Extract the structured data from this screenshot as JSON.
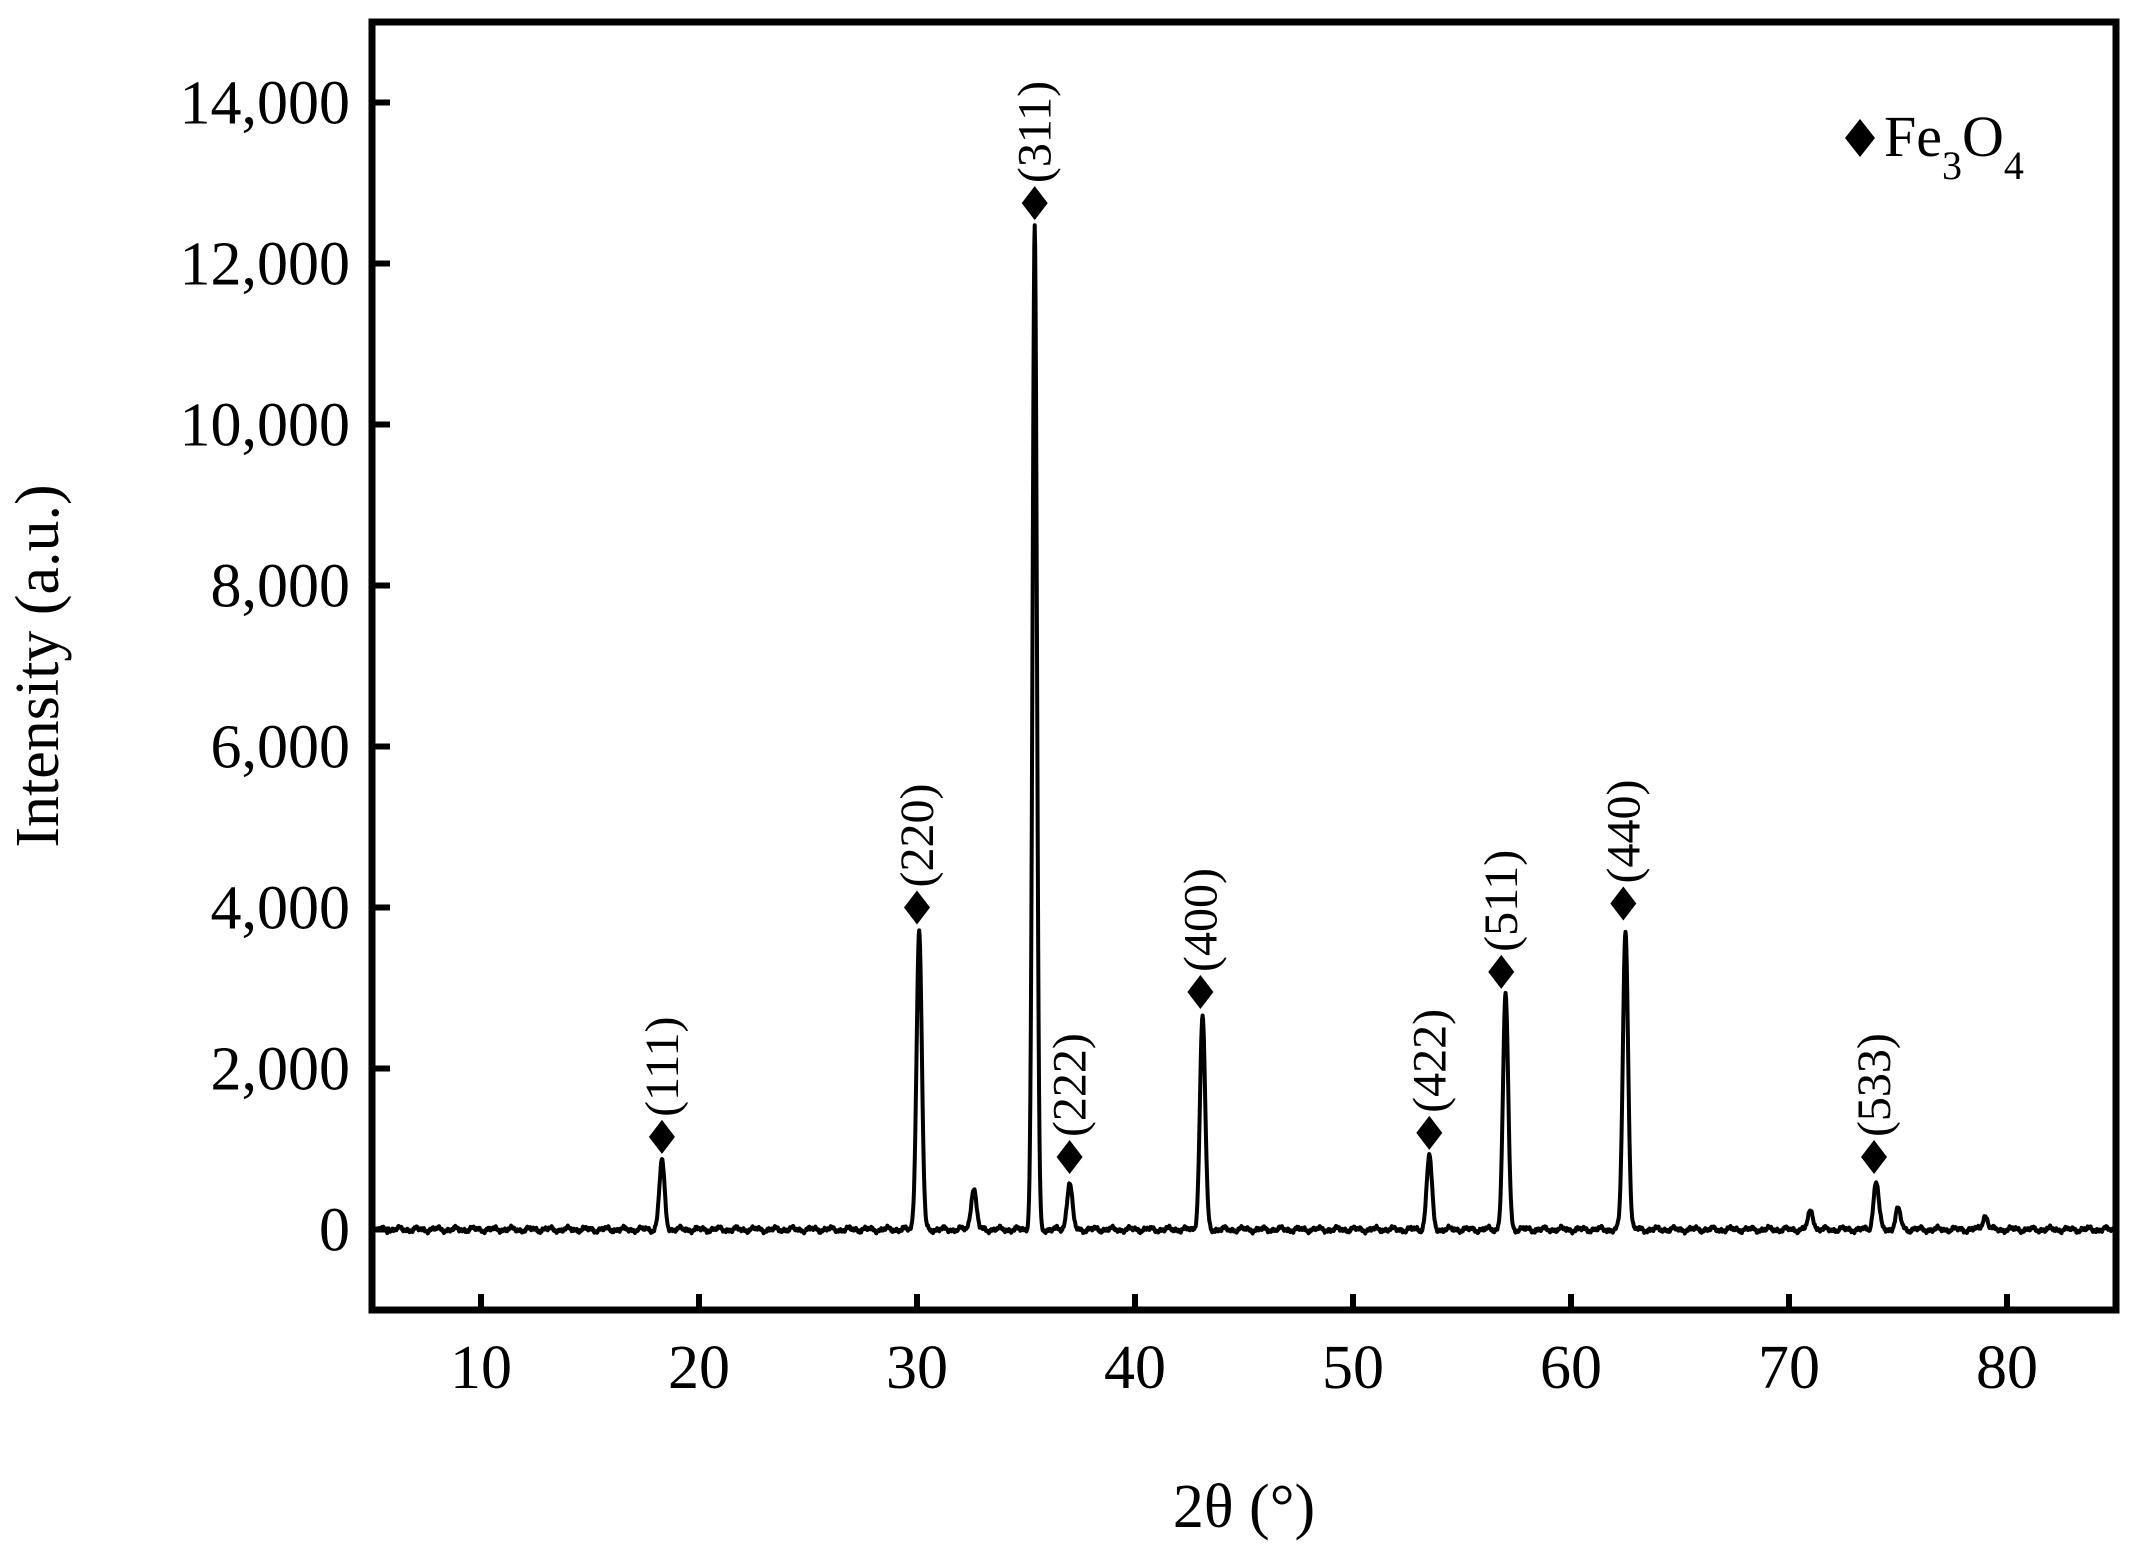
{
  "chart_data": {
    "type": "line",
    "title": "",
    "xlabel": "2θ (°)",
    "ylabel": "Intensity (a.u.)",
    "xlim": [
      5,
      85
    ],
    "ylim": [
      -1000,
      15000
    ],
    "x_ticks": [
      10,
      20,
      30,
      40,
      50,
      60,
      70,
      80
    ],
    "y_ticks": [
      0,
      2000,
      4000,
      6000,
      8000,
      10000,
      12000,
      14000
    ],
    "x_tick_labels": [
      "10",
      "20",
      "30",
      "40",
      "50",
      "60",
      "70",
      "80"
    ],
    "y_tick_labels": [
      "0",
      "2,000",
      "4,000",
      "6,000",
      "8,000",
      "10,000",
      "12,000",
      "14,000"
    ],
    "grid": false,
    "legend": {
      "placement": "top-right",
      "marker": "diamond",
      "label": {
        "base": "Fe",
        "sub1": "3",
        "mid": "O",
        "sub2": "4"
      }
    },
    "baseline": 0,
    "peaks": [
      {
        "x": 18.3,
        "y": 850,
        "hkl": "(111)",
        "marked": true
      },
      {
        "x": 30.1,
        "y": 3700,
        "hkl": "(220)",
        "marked": true
      },
      {
        "x": 32.6,
        "y": 520,
        "hkl": "",
        "marked": false
      },
      {
        "x": 35.4,
        "y": 12450,
        "hkl": "(311)",
        "marked": true
      },
      {
        "x": 37.0,
        "y": 580,
        "hkl": "(222)",
        "marked": true
      },
      {
        "x": 43.1,
        "y": 2650,
        "hkl": "(400)",
        "marked": true
      },
      {
        "x": 53.5,
        "y": 920,
        "hkl": "(422)",
        "marked": true
      },
      {
        "x": 57.0,
        "y": 2900,
        "hkl": "(511)",
        "marked": true
      },
      {
        "x": 62.5,
        "y": 3700,
        "hkl": "(440)",
        "marked": true
      },
      {
        "x": 71.0,
        "y": 230,
        "hkl": "",
        "marked": false
      },
      {
        "x": 74.0,
        "y": 600,
        "hkl": "(533)",
        "marked": true
      },
      {
        "x": 75.0,
        "y": 250,
        "hkl": "",
        "marked": false
      },
      {
        "x": 79.0,
        "y": 170,
        "hkl": "",
        "marked": false
      }
    ],
    "marker_positions": [
      {
        "hkl": "(111)",
        "x": 18.3,
        "y": 1150
      },
      {
        "hkl": "(220)",
        "x": 30.0,
        "y": 4000
      },
      {
        "hkl": "(311)",
        "x": 35.4,
        "y": 12750
      },
      {
        "hkl": "(222)",
        "x": 37.0,
        "y": 900
      },
      {
        "hkl": "(400)",
        "x": 43.0,
        "y": 2950
      },
      {
        "hkl": "(422)",
        "x": 53.5,
        "y": 1200
      },
      {
        "hkl": "(511)",
        "x": 56.8,
        "y": 3200
      },
      {
        "hkl": "(440)",
        "x": 62.4,
        "y": 4050
      },
      {
        "hkl": "(533)",
        "x": 73.9,
        "y": 900
      }
    ]
  }
}
